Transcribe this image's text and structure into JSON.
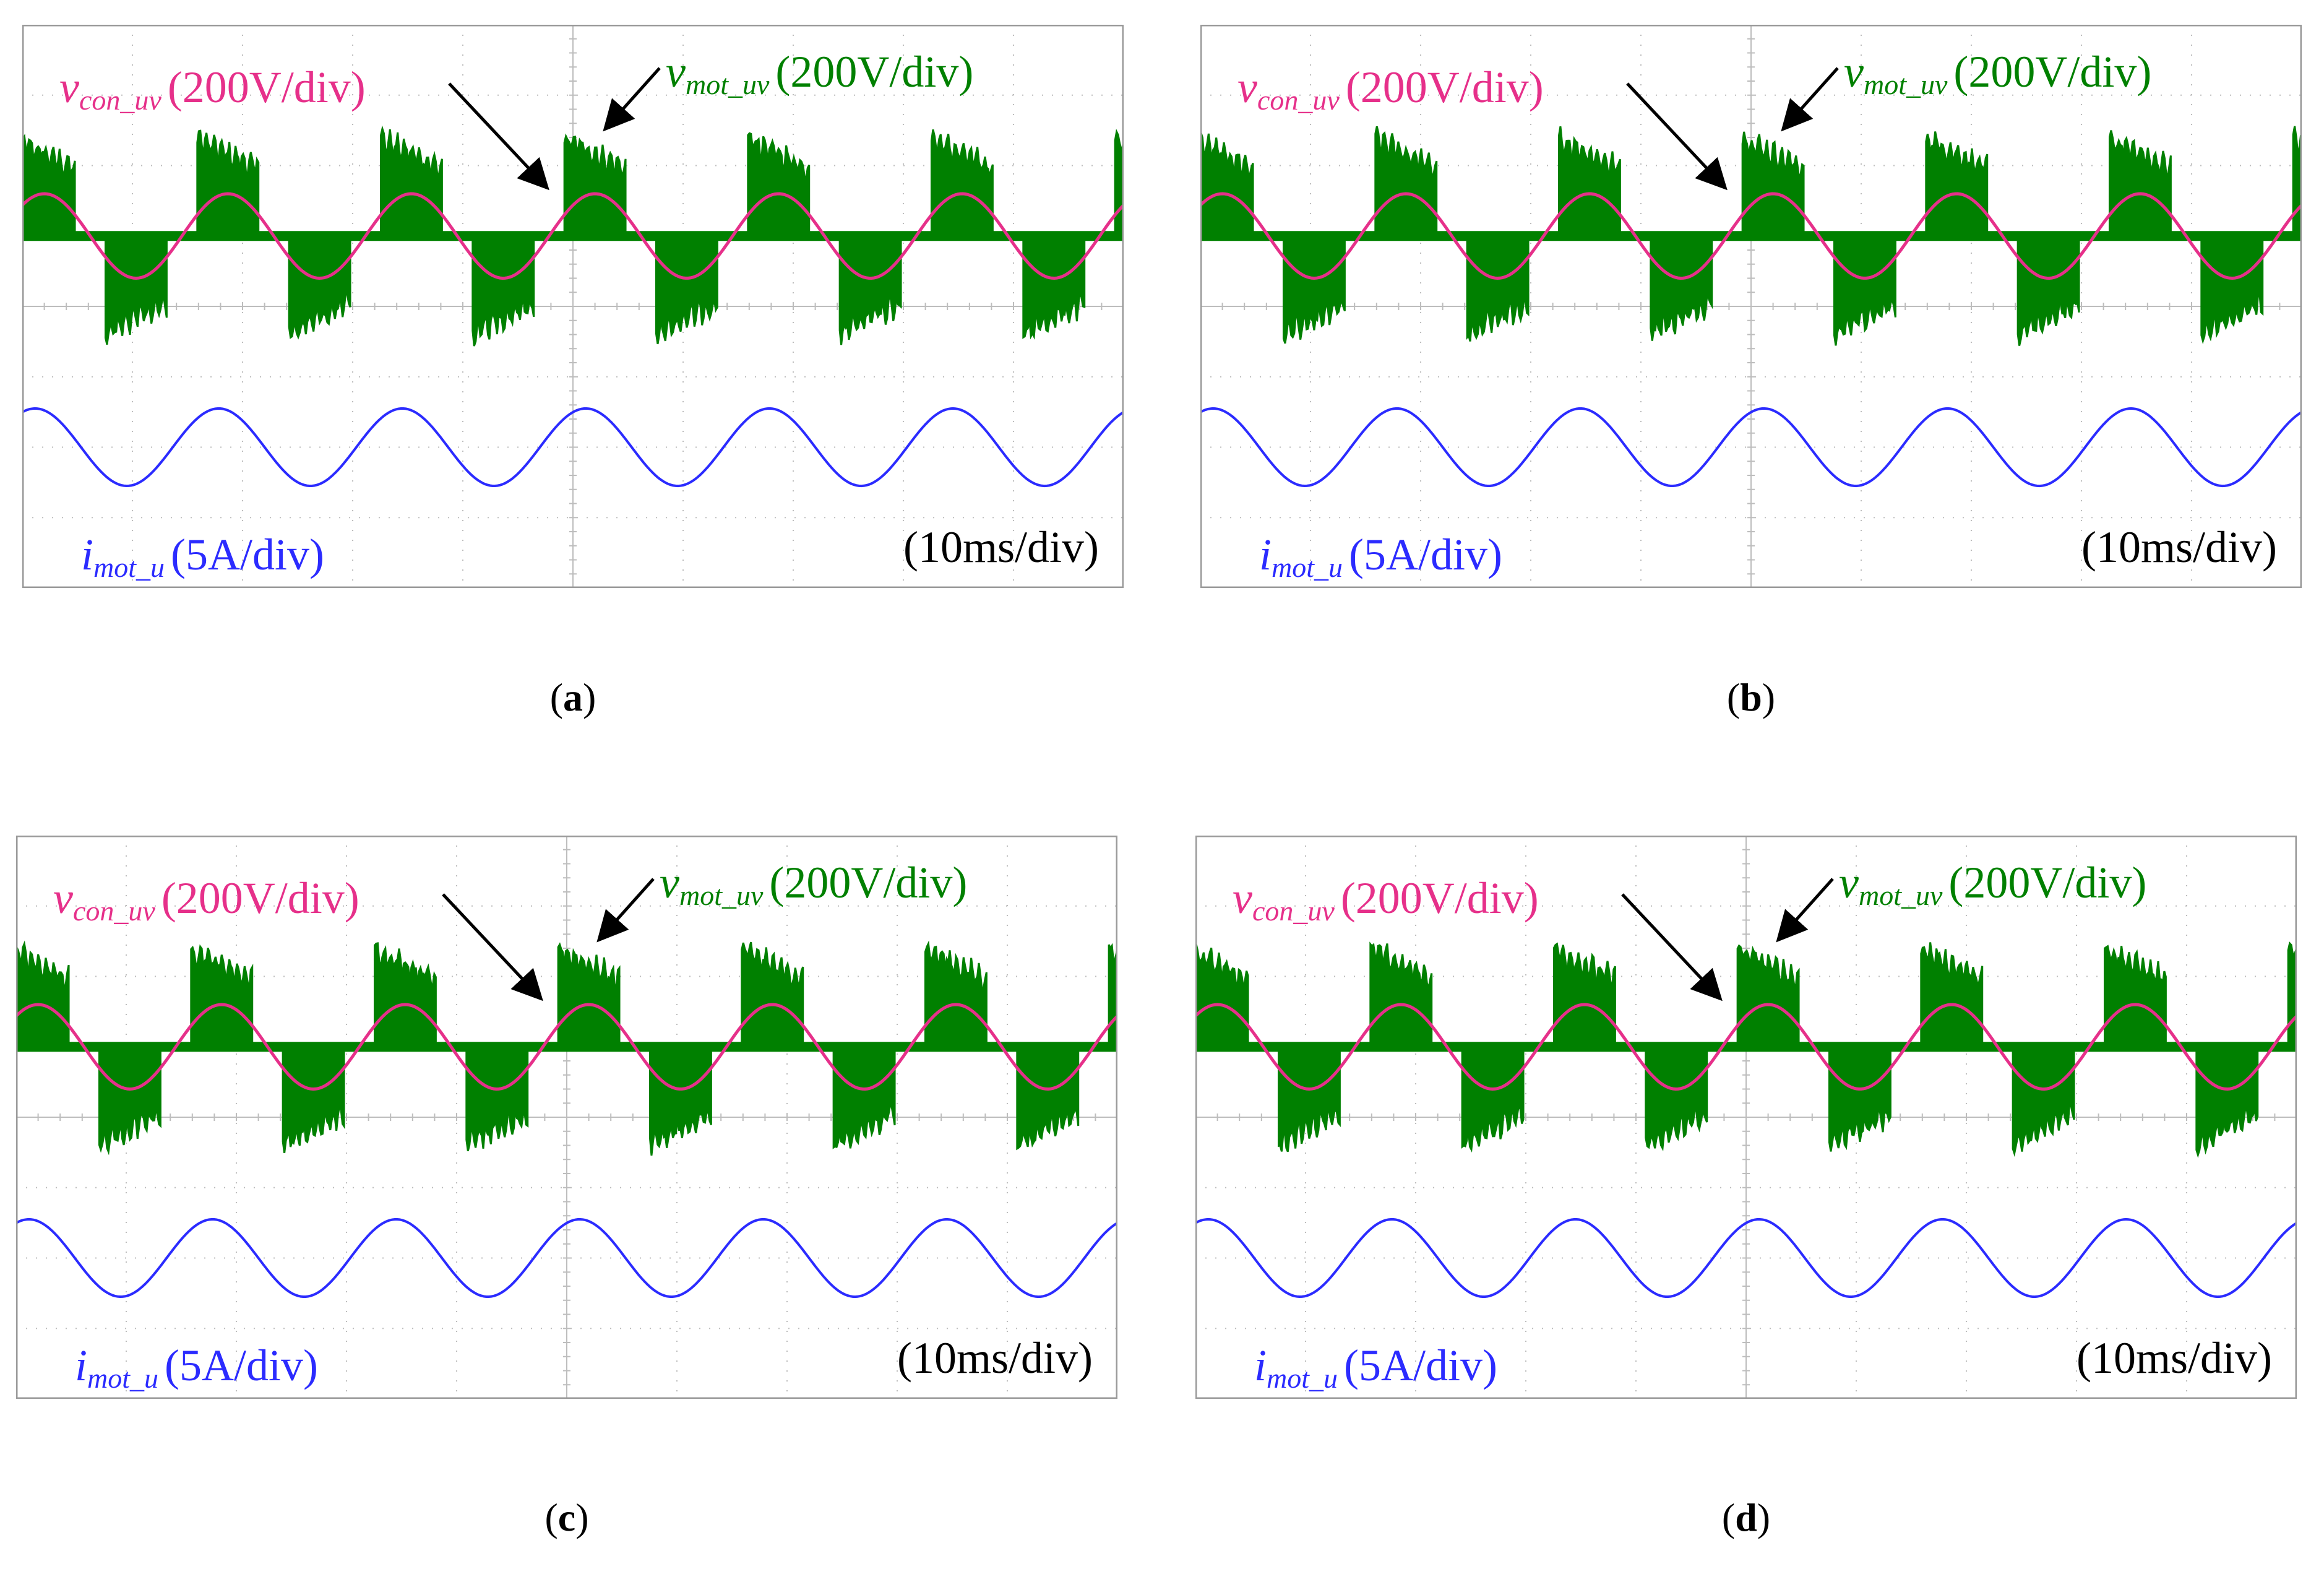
{
  "colors": {
    "vmot": "#008000",
    "vcon": "#e6308a",
    "imot": "#2b2bff",
    "frame": "#9a9a9a",
    "grid": "#bdbdbd",
    "arrow": "#000000"
  },
  "labels": {
    "vcon_main": "v",
    "vcon_sub": "con_uv",
    "vcon_scale": "(200V/div)",
    "vmot_main": "v",
    "vmot_sub": "mot_uv",
    "vmot_scale": "(200V/div)",
    "imot_main": "i",
    "imot_sub": "mot_u",
    "imot_scale": "(5A/div)",
    "time_scale": "(10ms/div)"
  },
  "chart_data": [
    {
      "type": "line",
      "caption_letter": "a",
      "x_divisions": 10,
      "y_divisions": 8,
      "time_per_div_ms": 10,
      "series": [
        {
          "name": "v_con_uv",
          "unit_per_div": "200V/div",
          "waveform": "sine",
          "cycles": 6,
          "amplitude_div": 0.6,
          "center_div": 5.0
        },
        {
          "name": "v_mot_uv",
          "unit_per_div": "200V/div",
          "waveform": "PWM quasi-square",
          "cycles": 6,
          "amplitude_div": 1.5,
          "center_div": 5.0
        },
        {
          "name": "i_mot_u",
          "unit_per_div": "5A/div",
          "waveform": "sine",
          "cycles": 6,
          "amplitude_div": 0.55,
          "center_div": 2.0
        }
      ]
    },
    {
      "type": "line",
      "caption_letter": "b",
      "x_divisions": 10,
      "y_divisions": 8,
      "time_per_div_ms": 10,
      "series": [
        {
          "name": "v_con_uv",
          "unit_per_div": "200V/div",
          "waveform": "sine",
          "cycles": 6,
          "amplitude_div": 0.6,
          "center_div": 5.0
        },
        {
          "name": "v_mot_uv",
          "unit_per_div": "200V/div",
          "waveform": "PWM quasi-square",
          "cycles": 6,
          "amplitude_div": 1.5,
          "center_div": 5.0
        },
        {
          "name": "i_mot_u",
          "unit_per_div": "5A/div",
          "waveform": "sine",
          "cycles": 6,
          "amplitude_div": 0.55,
          "center_div": 2.0
        }
      ]
    },
    {
      "type": "line",
      "caption_letter": "c",
      "x_divisions": 10,
      "y_divisions": 8,
      "time_per_div_ms": 10,
      "series": [
        {
          "name": "v_con_uv",
          "unit_per_div": "200V/div",
          "waveform": "sine",
          "cycles": 6,
          "amplitude_div": 0.6,
          "center_div": 5.0
        },
        {
          "name": "v_mot_uv",
          "unit_per_div": "200V/div",
          "waveform": "PWM quasi-square",
          "cycles": 6,
          "amplitude_div": 1.5,
          "center_div": 5.0
        },
        {
          "name": "i_mot_u",
          "unit_per_div": "5A/div",
          "waveform": "sine",
          "cycles": 6,
          "amplitude_div": 0.55,
          "center_div": 2.0
        }
      ]
    },
    {
      "type": "line",
      "caption_letter": "d",
      "x_divisions": 10,
      "y_divisions": 8,
      "time_per_div_ms": 10,
      "series": [
        {
          "name": "v_con_uv",
          "unit_per_div": "200V/div",
          "waveform": "sine",
          "cycles": 6,
          "amplitude_div": 0.6,
          "center_div": 5.0
        },
        {
          "name": "v_mot_uv",
          "unit_per_div": "200V/div",
          "waveform": "PWM quasi-square",
          "cycles": 6,
          "amplitude_div": 1.5,
          "center_div": 5.0
        },
        {
          "name": "i_mot_u",
          "unit_per_div": "5A/div",
          "waveform": "sine",
          "cycles": 6,
          "amplitude_div": 0.55,
          "center_div": 2.0
        }
      ]
    }
  ]
}
